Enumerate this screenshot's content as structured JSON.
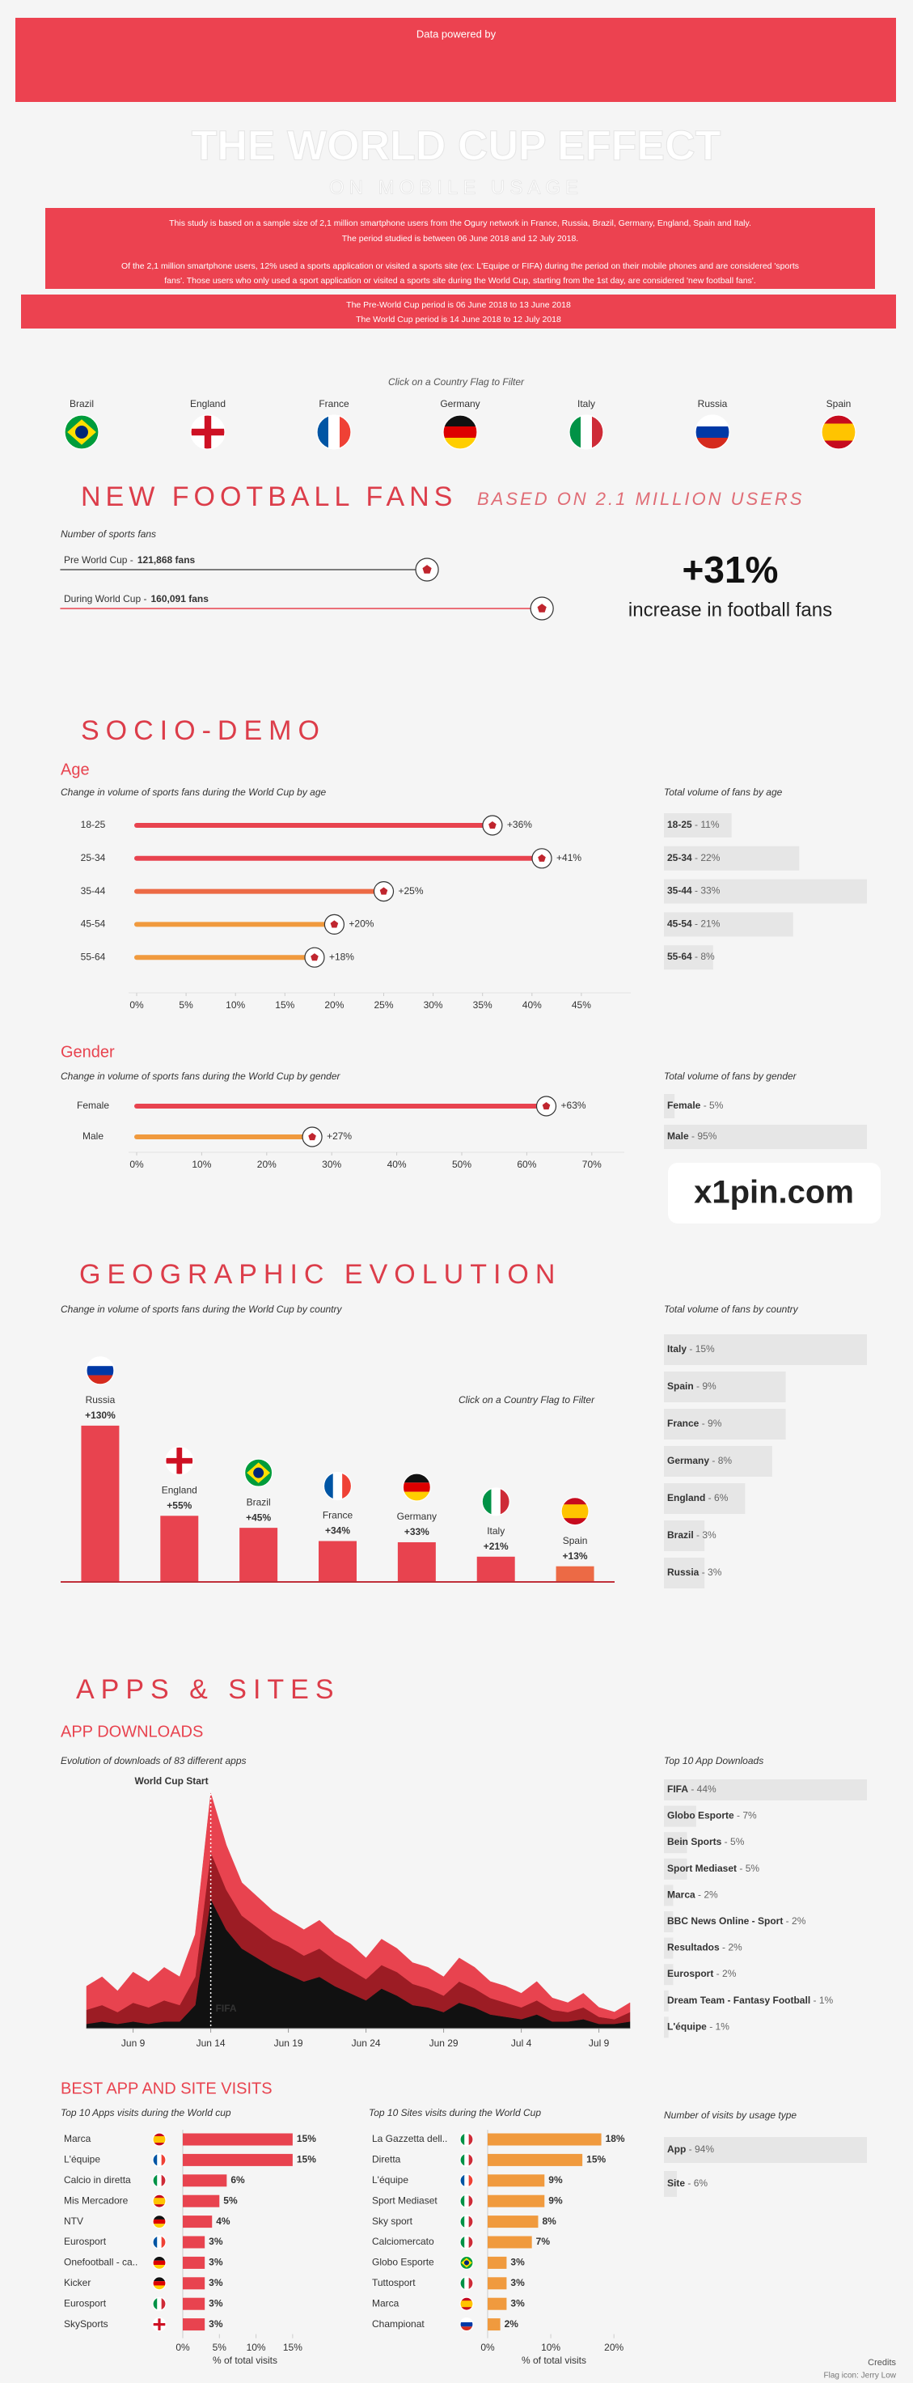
{
  "banner": {
    "text": "Data powered by"
  },
  "header": {
    "title": "THE WORLD CUP EFFECT",
    "subtitle": "ON MOBILE USAGE"
  },
  "intro": {
    "lines": [
      "This study is based on a sample size of 2,1 million smartphone users from the Ogury network in France, Russia, Brazil, Germany, England, Spain and Italy.",
      "The period studied is between 06 June 2018 and 12 July 2018.",
      "Of the 2,1 million smartphone users, 12% used a sports application or visited a sports site (ex: L'Equipe or FIFA) during the period on their mobile phones and are considered 'sports",
      "fans'. Those users who only used a sport application or visited a sports site during the World Cup, starting from the 1st day, are considered 'new football fans'."
    ],
    "periods": [
      "The Pre-World Cup period is 06 June 2018 to 13 June 2018",
      "The World Cup period is 14 June 2018 to 12 July 2018"
    ]
  },
  "filter": {
    "hint": "Click on a Country Flag to Filter",
    "countries": [
      "Brazil",
      "England",
      "France",
      "Germany",
      "Italy",
      "Russia",
      "Spain"
    ]
  },
  "sections": {
    "new_fans": "NEW FOOTBALL FANS",
    "new_fans_note": "BASED ON 2.1 MILLION USERS",
    "increase": "+31%",
    "increase_label": "increase in football fans",
    "socio": "SOCIO-DEMO",
    "age": "Age",
    "gender": "Gender",
    "geo": "GEOGRAPHIC EVOLUTION",
    "apps": "APPS & SITES",
    "downloads": "APP DOWNLOADS",
    "visits": "BEST APP AND SITE VISITS"
  },
  "separator": " - ",
  "watermark": "x1pin.com",
  "credits": {
    "title": "Credits",
    "flags": "Flag icon: Jerry Low"
  },
  "chart_data": [
    {
      "type": "lollipop",
      "title": "Number of sports fans",
      "categories": [
        "Pre World Cup -",
        "During World Cup -"
      ],
      "values": [
        121868,
        160091
      ],
      "value_labels": [
        "121,868 fans",
        "160,091 fans"
      ],
      "colors": [
        "#555555",
        "#e8434f"
      ],
      "xlim": [
        0,
        170000
      ]
    },
    {
      "type": "lollipop",
      "title": "Change in volume of sports fans during the World Cup by age",
      "categories": [
        "18-25",
        "25-34",
        "35-44",
        "45-54",
        "55-64"
      ],
      "values": [
        36,
        41,
        25,
        20,
        18
      ],
      "value_labels": [
        "+36%",
        "+41%",
        "+25%",
        "+20%",
        "+18%"
      ],
      "colors": [
        "#e8434f",
        "#e8434f",
        "#ec6a45",
        "#f09a3e",
        "#f09a3e"
      ],
      "xlim": [
        0,
        50
      ],
      "xticks": [
        {
          "value": 0,
          "label": "0%"
        },
        {
          "value": 5,
          "label": "5%"
        },
        {
          "value": 10,
          "label": "10%"
        },
        {
          "value": 15,
          "label": "15%"
        },
        {
          "value": 20,
          "label": "20%"
        },
        {
          "value": 25,
          "label": "25%"
        },
        {
          "value": 30,
          "label": "30%"
        },
        {
          "value": 35,
          "label": "35%"
        },
        {
          "value": 40,
          "label": "40%"
        },
        {
          "value": 45,
          "label": "45%"
        }
      ]
    },
    {
      "type": "bar",
      "title": "Total volume of fans by age",
      "categories": [
        "18-25",
        "25-34",
        "35-44",
        "45-54",
        "55-64"
      ],
      "values": [
        11,
        22,
        33,
        21,
        8
      ],
      "value_labels": [
        "11%",
        "22%",
        "33%",
        "21%",
        "8%"
      ],
      "color": "#e6e6e6"
    },
    {
      "type": "lollipop",
      "title": "Change in volume of sports fans during the World Cup by gender",
      "categories": [
        "Female",
        "Male"
      ],
      "values": [
        63,
        27
      ],
      "value_labels": [
        "+63%",
        "+27%"
      ],
      "colors": [
        "#e8434f",
        "#f09a3e"
      ],
      "xlim": [
        0,
        75
      ],
      "xticks": [
        {
          "value": 0,
          "label": "0%"
        },
        {
          "value": 10,
          "label": "10%"
        },
        {
          "value": 20,
          "label": "20%"
        },
        {
          "value": 30,
          "label": "30%"
        },
        {
          "value": 40,
          "label": "40%"
        },
        {
          "value": 50,
          "label": "50%"
        },
        {
          "value": 60,
          "label": "60%"
        },
        {
          "value": 70,
          "label": "70%"
        }
      ]
    },
    {
      "type": "bar",
      "title": "Total volume of fans by gender",
      "categories": [
        "Female",
        "Male"
      ],
      "values": [
        5,
        95
      ],
      "value_labels": [
        "5%",
        "95%"
      ],
      "color": "#e6e6e6"
    },
    {
      "type": "column",
      "title": "Change in volume of sports fans during the World Cup by country",
      "annotation": "Click on a Country Flag to Filter",
      "categories": [
        "Russia",
        "England",
        "Brazil",
        "France",
        "Germany",
        "Italy",
        "Spain"
      ],
      "values": [
        130,
        55,
        45,
        34,
        33,
        21,
        13
      ],
      "value_labels": [
        "+130%",
        "+55%",
        "+45%",
        "+34%",
        "+33%",
        "+21%",
        "+13%"
      ],
      "colors": [
        "#e8434f",
        "#e8434f",
        "#e8434f",
        "#e8434f",
        "#e8434f",
        "#e8434f",
        "#ec6a45"
      ],
      "ylim": [
        0,
        140
      ]
    },
    {
      "type": "bar",
      "title": "Total volume of fans by country",
      "categories": [
        "Italy",
        "Spain",
        "France",
        "Germany",
        "England",
        "Brazil",
        "Russia"
      ],
      "values": [
        15,
        9,
        9,
        8,
        6,
        3,
        3
      ],
      "value_labels": [
        "15%",
        "9%",
        "9%",
        "8%",
        "6%",
        "3%",
        "3%"
      ],
      "color": "#e6e6e6"
    },
    {
      "type": "area",
      "title": "Evolution of downloads of 83 different apps",
      "x": [
        6,
        7,
        8,
        9,
        10,
        11,
        12,
        13,
        14,
        15,
        16,
        17,
        18,
        19,
        20,
        21,
        22,
        23,
        24,
        25,
        26,
        27,
        28,
        29,
        30,
        31,
        32,
        33,
        34,
        35,
        36,
        37,
        38,
        39,
        40,
        41
      ],
      "xlim": [
        6,
        41
      ],
      "ylim": [
        0,
        100
      ],
      "xticks": [
        {
          "value": 9,
          "label": "Jun 9"
        },
        {
          "value": 14,
          "label": "Jun 14"
        },
        {
          "value": 19,
          "label": "Jun 19"
        },
        {
          "value": 24,
          "label": "Jun 24"
        },
        {
          "value": 29,
          "label": "Jun 29"
        },
        {
          "value": 34,
          "label": "Jul 4"
        },
        {
          "value": 39,
          "label": "Jul 9"
        }
      ],
      "annotations": [
        {
          "text": "World Cup Start",
          "x": 14
        }
      ],
      "series": [
        {
          "name": "FIFA",
          "color": "#111111",
          "values": [
            2,
            3,
            2,
            3,
            2,
            3,
            3,
            10,
            55,
            42,
            34,
            30,
            26,
            23,
            20,
            22,
            18,
            15,
            12,
            17,
            14,
            10,
            9,
            7,
            11,
            9,
            6,
            5,
            4,
            6,
            3,
            3,
            4,
            2,
            2,
            3
          ]
        },
        {
          "color": "#9c1c24",
          "values": [
            6,
            7,
            5,
            8,
            7,
            9,
            7,
            12,
            20,
            17,
            14,
            13,
            12,
            12,
            11,
            12,
            11,
            10,
            9,
            10,
            10,
            9,
            8,
            7,
            9,
            8,
            7,
            6,
            5,
            6,
            5,
            4,
            5,
            3,
            2,
            4
          ]
        },
        {
          "color": "#e8434f",
          "values": [
            10,
            12,
            9,
            13,
            11,
            14,
            12,
            18,
            25,
            19,
            14,
            13,
            12,
            11,
            11,
            12,
            11,
            11,
            9,
            11,
            10,
            9,
            9,
            8,
            10,
            9,
            7,
            7,
            6,
            8,
            5,
            4,
            6,
            4,
            3,
            4
          ]
        }
      ]
    },
    {
      "type": "bar",
      "title": "Top 10 App Downloads",
      "categories": [
        "FIFA",
        "Globo Esporte",
        "Bein Sports",
        "Sport Mediaset",
        "Marca",
        "BBC News Online - Sport",
        "Resultados",
        "Eurosport",
        "Dream Team - Fantasy Football",
        "L'équipe"
      ],
      "values": [
        44,
        7,
        5,
        5,
        2,
        2,
        2,
        2,
        1,
        1
      ],
      "value_labels": [
        "44%",
        "7%",
        "5%",
        "5%",
        "2%",
        "2%",
        "2%",
        "2%",
        "1%",
        "1%"
      ],
      "color": "#e6e6e6"
    },
    {
      "type": "bar",
      "title": "Top 10 Apps visits during the World cup",
      "categories": [
        "Marca",
        "L'équipe",
        "Calcio in diretta",
        "Mis Mercadore",
        "NTV",
        "Eurosport",
        "Onefootball - ca..",
        "Kicker",
        "Eurosport",
        "SkySports"
      ],
      "values": [
        15,
        15,
        6,
        5,
        4,
        3,
        3,
        3,
        3,
        3
      ],
      "value_labels": [
        "15%",
        "15%",
        "6%",
        "5%",
        "4%",
        "3%",
        "3%",
        "3%",
        "3%",
        "3%"
      ],
      "color": "#e8434f",
      "xlim": [
        0,
        17
      ],
      "xlabel": "% of total visits",
      "xticks": [
        {
          "value": 0,
          "label": "0%"
        },
        {
          "value": 5,
          "label": "5%"
        },
        {
          "value": 10,
          "label": "10%"
        },
        {
          "value": 15,
          "label": "15%"
        }
      ]
    },
    {
      "type": "bar",
      "title": "Top 10 Sites visits during the World Cup",
      "categories": [
        "La Gazzetta dell..",
        "Diretta",
        "L'équipe",
        "Sport Mediaset",
        "Sky sport",
        "Calciomercato",
        "Globo Esporte",
        "Tuttosport",
        "Marca",
        "Championat"
      ],
      "values": [
        18,
        15,
        9,
        9,
        8,
        7,
        3,
        3,
        3,
        2
      ],
      "value_labels": [
        "18%",
        "15%",
        "9%",
        "9%",
        "8%",
        "7%",
        "3%",
        "3%",
        "3%",
        "2%"
      ],
      "color": "#f09a3e",
      "xlim": [
        0,
        21
      ],
      "xlabel": "% of total visits",
      "xticks": [
        {
          "value": 0,
          "label": "0%"
        },
        {
          "value": 10,
          "label": "10%"
        },
        {
          "value": 20,
          "label": "20%"
        }
      ]
    },
    {
      "type": "bar",
      "title": "Number of visits by usage type",
      "categories": [
        "App",
        "Site"
      ],
      "values": [
        94,
        6
      ],
      "value_labels": [
        "94%",
        "6%"
      ],
      "color": "#e6e6e6"
    }
  ]
}
